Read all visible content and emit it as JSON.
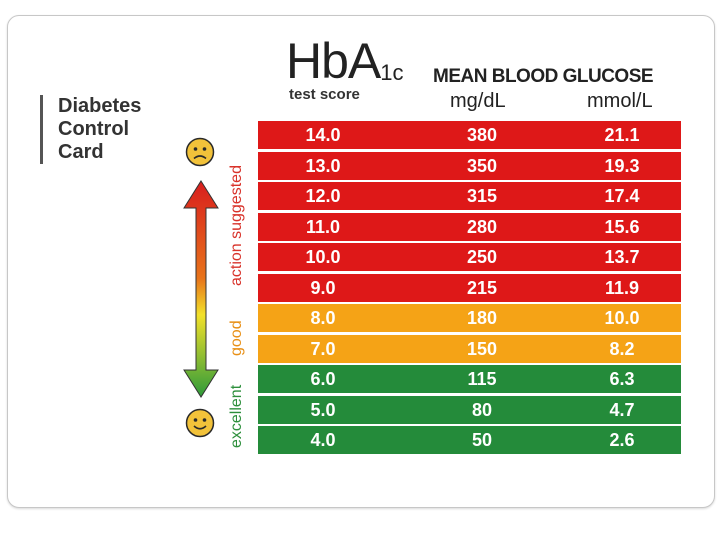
{
  "card": {
    "title_lines": [
      "Diabetes",
      "Control",
      "Card"
    ]
  },
  "header": {
    "hba_main": "HbA",
    "hba_sub": "1c",
    "test_score": "test score",
    "mean_title": "MEAN BLOOD GLUCOSE",
    "unit_mg": "mg/dL",
    "unit_mmol": "mmol/L"
  },
  "bands": {
    "action": "action suggested",
    "good": "good",
    "excellent": "excellent"
  },
  "faces": {
    "top": "sad-face-icon",
    "bottom": "happy-face-icon"
  },
  "colors": {
    "red": "#de1818",
    "orange": "#f5a316",
    "green": "#248b3a",
    "action_text": "#d8322a",
    "good_text": "#e88f15",
    "excellent_text": "#2d8f3c"
  },
  "rows": [
    {
      "hba1c": "14.0",
      "mgdl": "380",
      "mmol": "21.1",
      "band": "red"
    },
    {
      "hba1c": "13.0",
      "mgdl": "350",
      "mmol": "19.3",
      "band": "red"
    },
    {
      "hba1c": "12.0",
      "mgdl": "315",
      "mmol": "17.4",
      "band": "red"
    },
    {
      "hba1c": "11.0",
      "mgdl": "280",
      "mmol": "15.6",
      "band": "red"
    },
    {
      "hba1c": "10.0",
      "mgdl": "250",
      "mmol": "13.7",
      "band": "red"
    },
    {
      "hba1c": "9.0",
      "mgdl": "215",
      "mmol": "11.9",
      "band": "red"
    },
    {
      "hba1c": "8.0",
      "mgdl": "180",
      "mmol": "10.0",
      "band": "orange"
    },
    {
      "hba1c": "7.0",
      "mgdl": "150",
      "mmol": "8.2",
      "band": "orange"
    },
    {
      "hba1c": "6.0",
      "mgdl": "115",
      "mmol": "6.3",
      "band": "green"
    },
    {
      "hba1c": "5.0",
      "mgdl": "80",
      "mmol": "4.7",
      "band": "green"
    },
    {
      "hba1c": "4.0",
      "mgdl": "50",
      "mmol": "2.6",
      "band": "green"
    }
  ]
}
